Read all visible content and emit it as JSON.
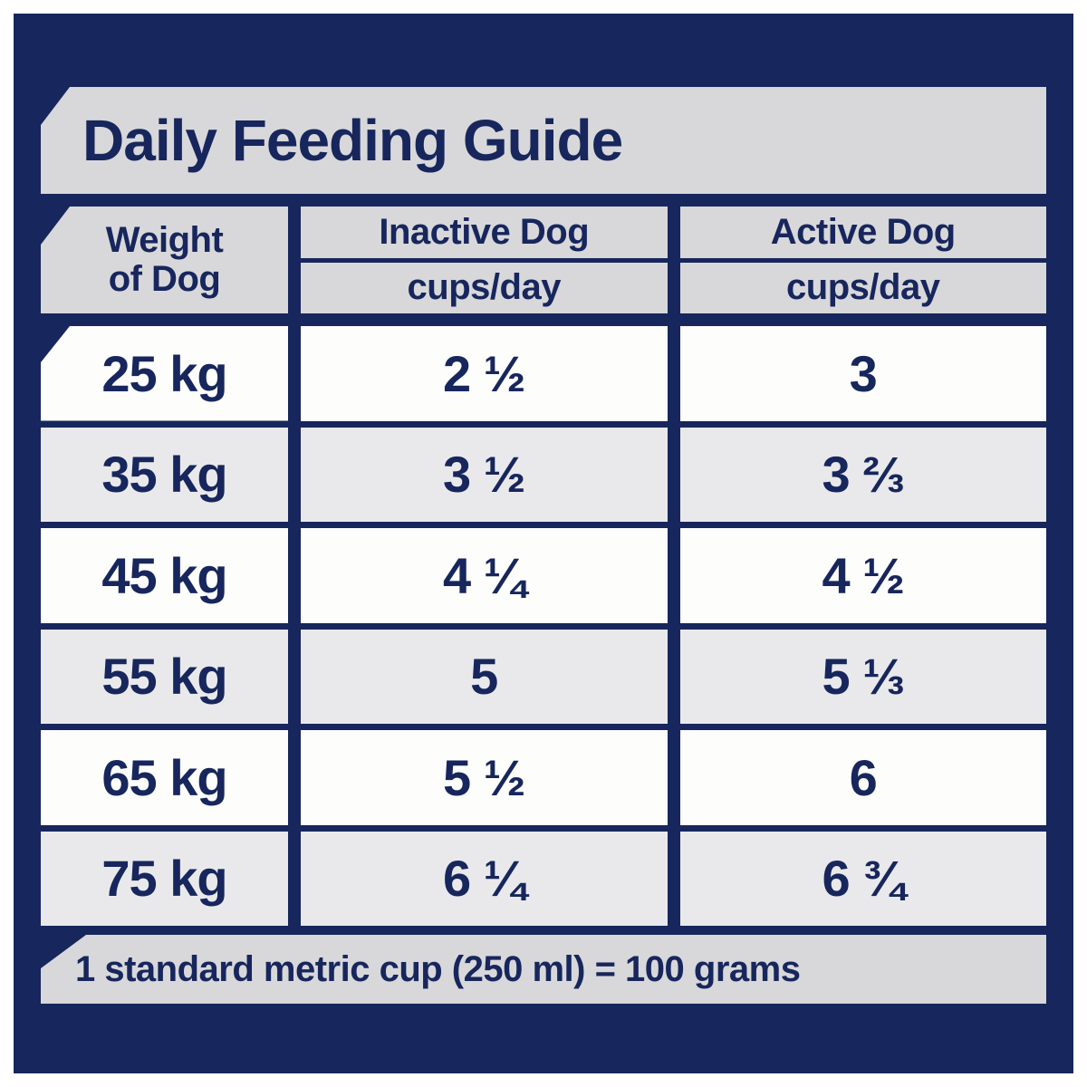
{
  "colors": {
    "navy": "#17265c",
    "banner_gray": "#d8d8da",
    "row_alt_gray": "#e9e9ec",
    "row_white": "#fdfdfc",
    "page_white": "#ffffff"
  },
  "title": "Daily Feeding Guide",
  "table": {
    "weight_header": {
      "line1": "Weight",
      "line2": "of Dog"
    },
    "columns": [
      {
        "label": "Inactive Dog",
        "sublabel": "cups/day"
      },
      {
        "label": "Active Dog",
        "sublabel": "cups/day"
      }
    ],
    "rows": [
      {
        "weight": "25 kg",
        "inactive": "2 ½",
        "active": "3"
      },
      {
        "weight": "35 kg",
        "inactive": "3 ½",
        "active": "3 ⅔"
      },
      {
        "weight": "45 kg",
        "inactive": "4 ¼",
        "active": "4 ½"
      },
      {
        "weight": "55 kg",
        "inactive": "5",
        "active": "5 ⅓"
      },
      {
        "weight": "65 kg",
        "inactive": "5 ½",
        "active": "6"
      },
      {
        "weight": "75 kg",
        "inactive": "6 ¼",
        "active": "6 ¾"
      }
    ]
  },
  "footer": "1 standard metric cup (250 ml) = 100 grams"
}
